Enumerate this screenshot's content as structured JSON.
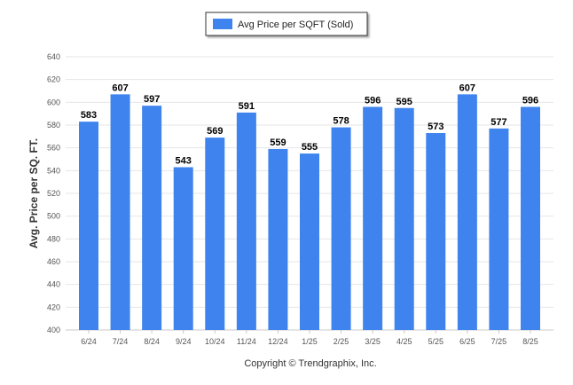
{
  "colors": {
    "bar": "#3f84ee",
    "grid": "#e6e6e6",
    "axis": "#c8c8c8",
    "legend_border": "#333333"
  },
  "legend": {
    "label": "Avg Price per SQFT (Sold)"
  },
  "footer": {
    "copyright": "Copyright © Trendgraphix, Inc."
  },
  "chart_data": {
    "type": "bar",
    "ylabel": "Avg. Price per SQ. FT.",
    "xlabel": "",
    "ylim": [
      400,
      640
    ],
    "yticks": [
      400,
      420,
      440,
      460,
      480,
      500,
      520,
      540,
      560,
      580,
      600,
      620,
      640
    ],
    "grid": true,
    "legend_position": "top-center",
    "categories": [
      "6/24",
      "7/24",
      "8/24",
      "9/24",
      "10/24",
      "11/24",
      "12/24",
      "1/25",
      "2/25",
      "3/25",
      "4/25",
      "5/25",
      "6/25",
      "7/25",
      "8/25"
    ],
    "series": [
      {
        "name": "Avg Price per SQFT (Sold)",
        "values": [
          583,
          607,
          597,
          543,
          569,
          591,
          559,
          555,
          578,
          596,
          595,
          573,
          607,
          577,
          596
        ]
      }
    ]
  }
}
